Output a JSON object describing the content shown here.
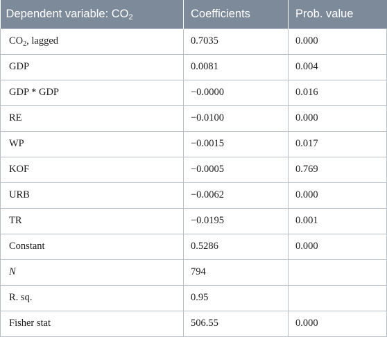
{
  "table": {
    "headers": {
      "col1_prefix": "Dependent variable: CO",
      "col1_sub": "2",
      "col2": "Coefficients",
      "col3": "Prob. value"
    },
    "rows": [
      {
        "name_prefix": "CO",
        "name_sub": "2",
        "name_suffix": ", lagged",
        "coef": "0.7035",
        "prob": "0.000"
      },
      {
        "name": "GDP",
        "coef": "0.0081",
        "prob": "0.004"
      },
      {
        "name": "GDP * GDP",
        "coef": "−0.0000",
        "prob": "0.016"
      },
      {
        "name": "RE",
        "coef": "−0.0100",
        "prob": "0.000"
      },
      {
        "name": "WP",
        "coef": "−0.0015",
        "prob": "0.017"
      },
      {
        "name": "KOF",
        "coef": "−0.0005",
        "prob": "0.769"
      },
      {
        "name": "URB",
        "coef": "−0.0062",
        "prob": "0.000"
      },
      {
        "name": "TR",
        "coef": "−0.0195",
        "prob": "0.001"
      },
      {
        "name": "Constant",
        "coef": "0.5286",
        "prob": "0.000"
      },
      {
        "name": "N",
        "coef": "794",
        "prob": ""
      },
      {
        "name": "R. sq.",
        "coef": "0.95",
        "prob": ""
      },
      {
        "name": "Fisher stat",
        "coef": "506.55",
        "prob": "0.000"
      }
    ]
  },
  "colors": {
    "header_bg": "#7c8a99",
    "header_text": "#ffffff",
    "border": "#b6bec7",
    "body_text": "#1a1a1a"
  }
}
